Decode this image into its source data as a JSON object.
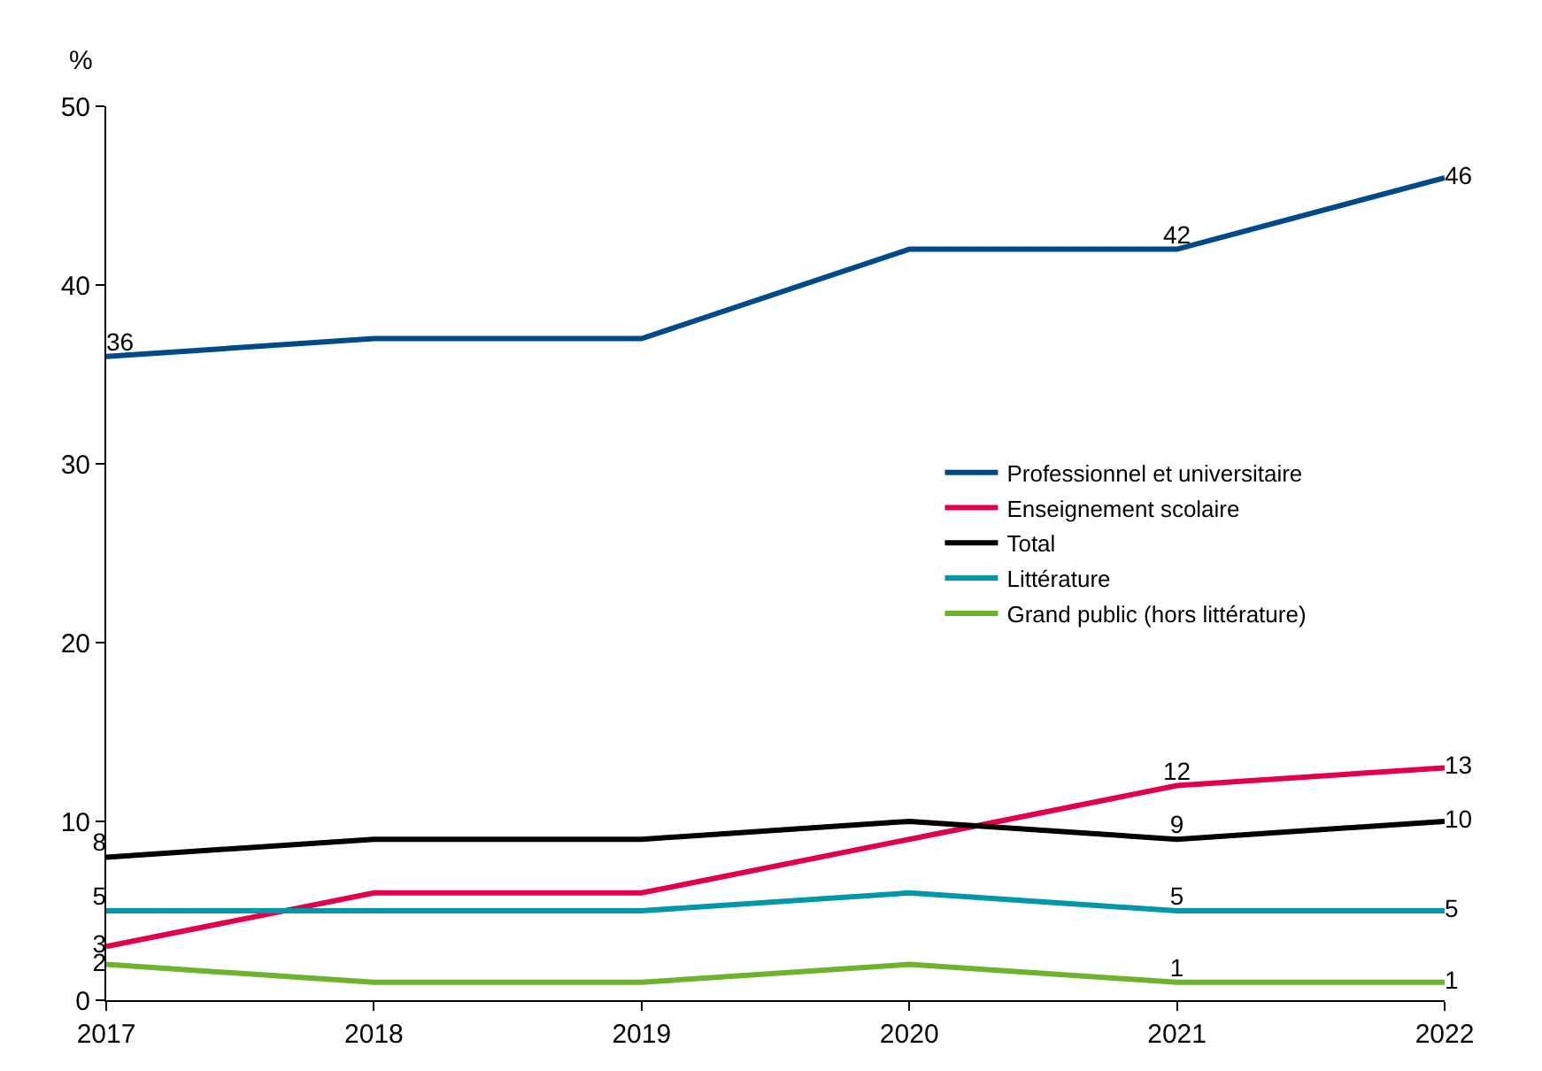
{
  "chart_data": {
    "type": "line",
    "ylabel": "%",
    "x": [
      2017,
      2018,
      2019,
      2020,
      2021,
      2022
    ],
    "xlim": [
      2017,
      2022
    ],
    "xticks": [
      2017,
      2018,
      2019,
      2020,
      2021,
      2022
    ],
    "ylim": [
      0,
      50
    ],
    "yticks": [
      0,
      10,
      20,
      30,
      40,
      50
    ],
    "legend": "right",
    "marker": "none",
    "line_style": "solid",
    "series": [
      {
        "name": "Professionnel et universitaire",
        "color": "#004a8a",
        "values": [
          36,
          37,
          37,
          42,
          42,
          46
        ],
        "value_labels": [
          "36",
          null,
          null,
          null,
          "42",
          "46"
        ]
      },
      {
        "name": "Enseignement scolaire",
        "color": "#e2004a",
        "values": [
          3,
          6,
          6,
          9,
          12,
          13
        ],
        "value_labels": [
          "3",
          null,
          null,
          null,
          "12",
          "13"
        ]
      },
      {
        "name": "Total",
        "color": "#000000",
        "values": [
          8,
          9,
          9,
          10,
          9,
          10
        ],
        "value_labels": [
          "8",
          null,
          null,
          null,
          "9",
          "10"
        ]
      },
      {
        "name": "Littérature",
        "color": "#0097a9",
        "values": [
          5,
          5,
          5,
          6,
          5,
          5
        ],
        "value_labels": [
          "5",
          null,
          null,
          null,
          "5",
          "5"
        ]
      },
      {
        "name": "Grand public (hors littérature)",
        "color": "#6cb42c",
        "values": [
          2,
          1,
          1,
          2,
          1,
          1
        ],
        "value_labels": [
          "2",
          null,
          null,
          null,
          "1",
          "1"
        ]
      }
    ]
  }
}
